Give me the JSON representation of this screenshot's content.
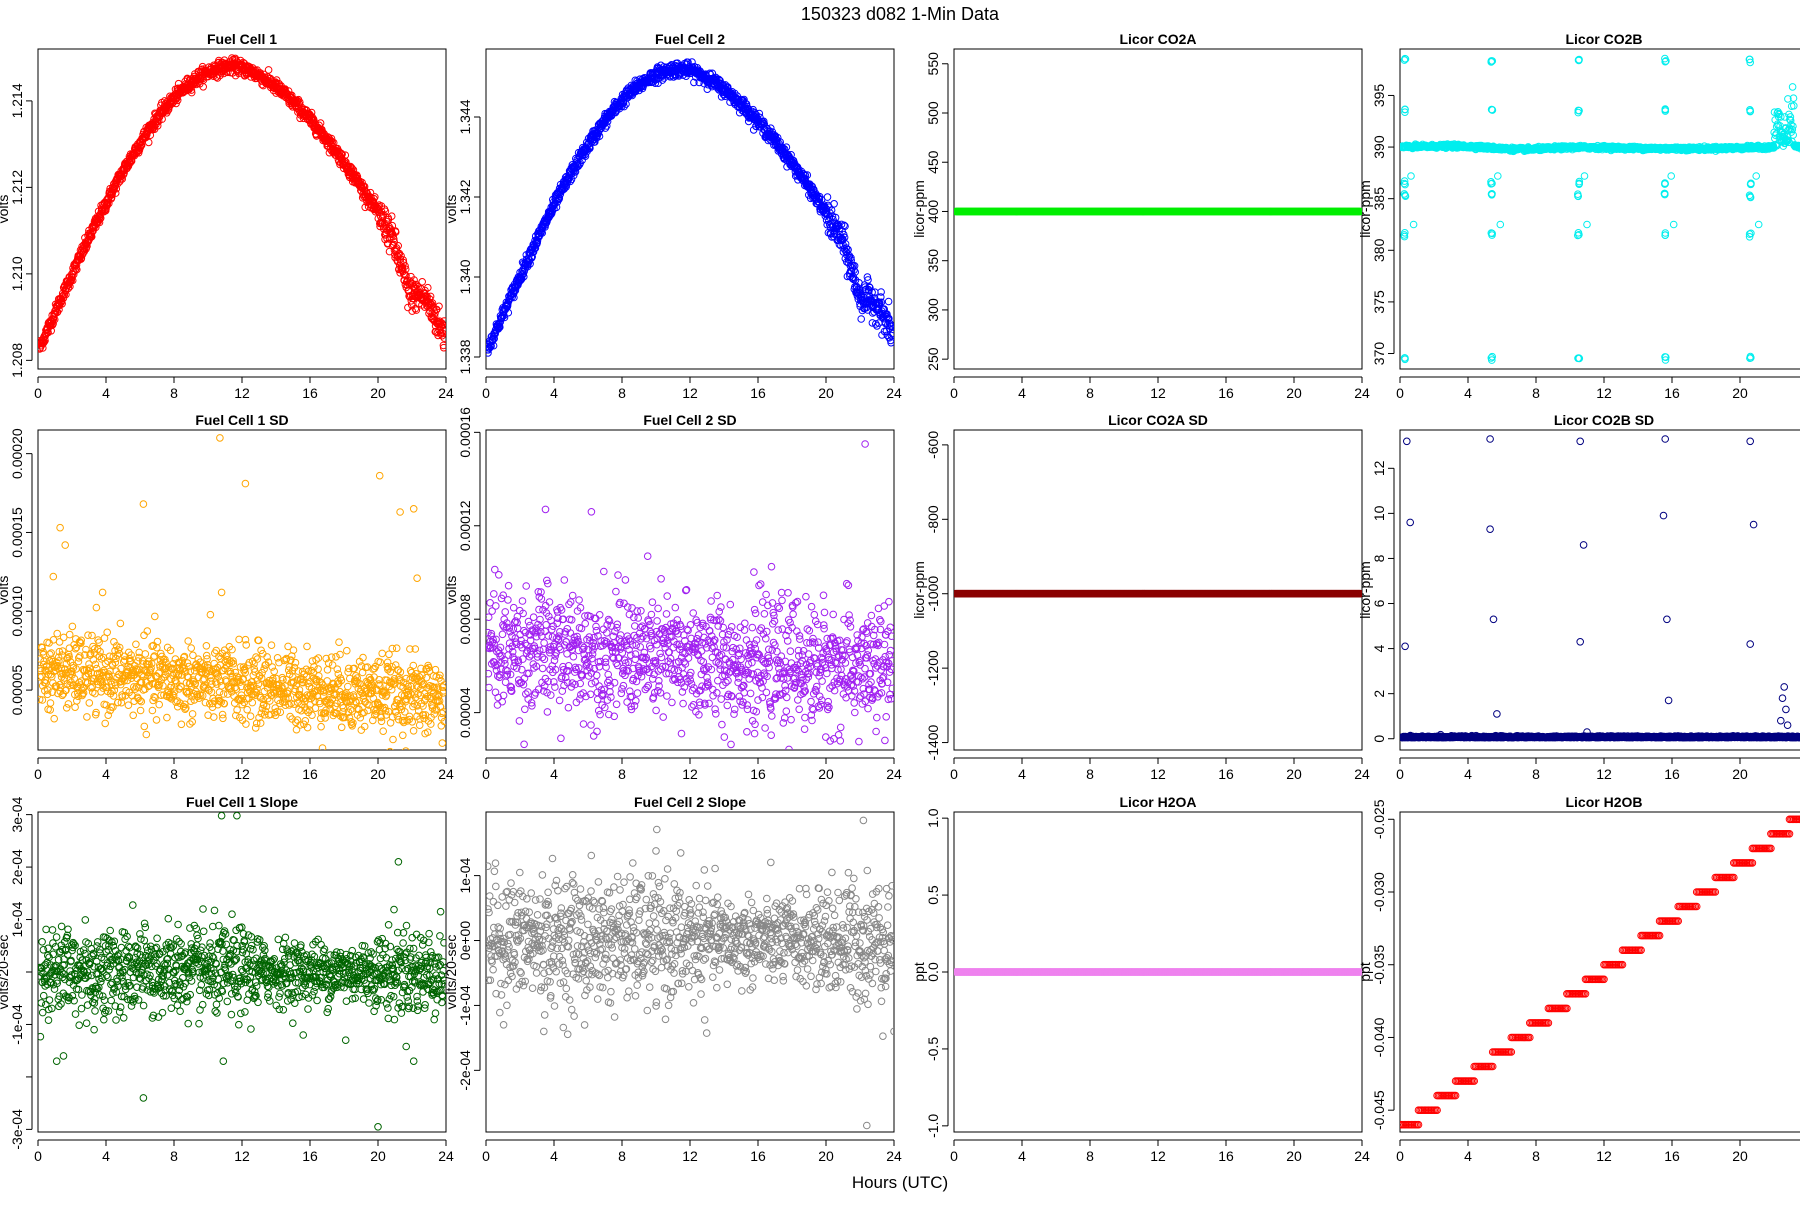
{
  "page": {
    "title": "150323    d082    1-Min Data",
    "xlabel": "Hours (UTC)"
  },
  "chart_data": [
    {
      "type": "scatter",
      "title": "Fuel Cell 1",
      "ylabel": "volts",
      "color": "#ff0000",
      "xlim": [
        0,
        24
      ],
      "ylim": [
        1.2078,
        1.2152
      ],
      "xticks": [
        0,
        4,
        8,
        12,
        16,
        20,
        24
      ],
      "yticks": [
        1.208,
        1.21,
        1.212,
        1.214
      ],
      "ytick_labels": [
        "1.208",
        "1.210",
        "1.212",
        "1.214"
      ],
      "pattern": "arch",
      "y_start": 1.2082,
      "y_peak": 1.2148,
      "x_peak": 11.5,
      "y_end": 1.2085,
      "noise": 0.00015,
      "dip": {
        "x": 21.8,
        "depth": 0.0012
      }
    },
    {
      "type": "scatter",
      "title": "Fuel Cell 2",
      "ylabel": "volts",
      "color": "#0000ff",
      "xlim": [
        0,
        24
      ],
      "ylim": [
        1.3377,
        1.3457
      ],
      "xticks": [
        0,
        4,
        8,
        12,
        16,
        20,
        24
      ],
      "yticks": [
        1.338,
        1.34,
        1.342,
        1.344
      ],
      "ytick_labels": [
        "1.338",
        "1.340",
        "1.342",
        "1.344"
      ],
      "pattern": "arch",
      "y_start": 1.3381,
      "y_peak": 1.3452,
      "x_peak": 11.5,
      "y_end": 1.3385,
      "noise": 0.00016,
      "dip": {
        "x": 22.0,
        "depth": 0.0013
      }
    },
    {
      "type": "scatter",
      "title": "Licor CO2A",
      "ylabel": "licor-ppm",
      "color": "#00ee00",
      "xlim": [
        0,
        24
      ],
      "ylim": [
        240,
        565
      ],
      "xticks": [
        0,
        4,
        8,
        12,
        16,
        20,
        24
      ],
      "yticks": [
        250,
        300,
        350,
        400,
        450,
        500,
        550
      ],
      "ytick_labels": [
        "250",
        "300",
        "350",
        "400",
        "450",
        "500",
        "550"
      ],
      "pattern": "flat",
      "value": 400
    },
    {
      "type": "scatter",
      "title": "Licor CO2B",
      "ylabel": "licor-ppm",
      "color": "#00eeee",
      "xlim": [
        0,
        24
      ],
      "ylim": [
        368.5,
        399.5
      ],
      "xticks": [
        0,
        4,
        8,
        12,
        16,
        20,
        24
      ],
      "yticks": [
        370,
        375,
        380,
        385,
        390,
        395
      ],
      "ytick_labels": [
        "370",
        "375",
        "380",
        "385",
        "390",
        "395"
      ],
      "pattern": "co2b",
      "value": 390,
      "calibrations": [
        0.3,
        5.4,
        10.5,
        15.6,
        20.6
      ],
      "cal_values": [
        398.4,
        393.5,
        386.5,
        385.3,
        381.5,
        369.5
      ]
    },
    {
      "type": "scatter",
      "title": "Fuel Cell 1 SD",
      "ylabel": "volts",
      "color": "#ffa500",
      "xlim": [
        0,
        24
      ],
      "ylim": [
        1.2e-05,
        0.000215
      ],
      "xticks": [
        0,
        4,
        8,
        12,
        16,
        20,
        24
      ],
      "yticks": [
        5e-05,
        0.0001,
        0.00015,
        0.0002
      ],
      "ytick_labels": [
        "0.00005",
        "0.00010",
        "0.00015",
        "0.00020"
      ],
      "pattern": "noise",
      "mean_start": 6.2e-05,
      "mean_end": 4.5e-05,
      "spread": 1.2e-05,
      "outliers": [
        [
          0.9,
          0.000122
        ],
        [
          1.3,
          0.000153
        ],
        [
          1.6,
          0.000142
        ],
        [
          3.8,
          0.000112
        ],
        [
          6.2,
          0.000168
        ],
        [
          10.7,
          0.00021
        ],
        [
          10.8,
          0.000112
        ],
        [
          12.2,
          0.000181
        ],
        [
          20.1,
          0.000186
        ],
        [
          21.3,
          0.000163
        ],
        [
          22.1,
          0.000165
        ],
        [
          22.3,
          0.000121
        ]
      ]
    },
    {
      "type": "scatter",
      "title": "Fuel Cell 2 SD",
      "ylabel": "volts",
      "color": "#a020f0",
      "xlim": [
        0,
        24
      ],
      "ylim": [
        2.4e-05,
        0.000161
      ],
      "xticks": [
        0,
        4,
        8,
        12,
        16,
        20,
        24
      ],
      "yticks": [
        4e-05,
        8e-05,
        0.00012,
        0.00016
      ],
      "ytick_labels": [
        "0.00004",
        "0.00008",
        "0.00012",
        "0.00016"
      ],
      "pattern": "noise",
      "mean_start": 6.8e-05,
      "mean_end": 5.8e-05,
      "spread": 1.3e-05,
      "outliers": [
        [
          3.5,
          0.000127
        ],
        [
          6.2,
          0.000126
        ],
        [
          22.3,
          0.000155
        ],
        [
          11.5,
          3.1e-05
        ],
        [
          15.8,
          3.1e-05
        ]
      ]
    },
    {
      "type": "scatter",
      "title": "Licor CO2A SD",
      "ylabel": "licor-ppm",
      "color": "#8b0000",
      "xlim": [
        0,
        24
      ],
      "ylim": [
        -1420,
        -560
      ],
      "xticks": [
        0,
        4,
        8,
        12,
        16,
        20,
        24
      ],
      "yticks": [
        -1400,
        -1200,
        -1000,
        -800,
        -600
      ],
      "ytick_labels": [
        "-1400",
        "-1200",
        "-1000",
        "-800",
        "-600"
      ],
      "pattern": "flat",
      "value": -1000
    },
    {
      "type": "scatter",
      "title": "Licor CO2B SD",
      "ylabel": "licor-ppm",
      "color": "#000080",
      "xlim": [
        0,
        24
      ],
      "ylim": [
        -0.5,
        13.7
      ],
      "xticks": [
        0,
        4,
        8,
        12,
        16,
        20,
        24
      ],
      "yticks": [
        0,
        2,
        4,
        6,
        8,
        10,
        12
      ],
      "ytick_labels": [
        "0",
        "2",
        "4",
        "6",
        "8",
        "10",
        "12"
      ],
      "pattern": "co2bsd",
      "value": 0.05,
      "outliers": [
        [
          0.4,
          13.2
        ],
        [
          0.6,
          9.6
        ],
        [
          0.3,
          4.1
        ],
        [
          5.3,
          13.3
        ],
        [
          5.3,
          9.3
        ],
        [
          5.5,
          5.3
        ],
        [
          5.7,
          1.1
        ],
        [
          10.6,
          13.2
        ],
        [
          10.6,
          4.3
        ],
        [
          10.8,
          8.6
        ],
        [
          11.0,
          0.3
        ],
        [
          15.6,
          13.3
        ],
        [
          15.5,
          9.9
        ],
        [
          15.7,
          5.3
        ],
        [
          15.8,
          1.7
        ],
        [
          20.6,
          13.2
        ],
        [
          20.6,
          4.2
        ],
        [
          20.8,
          9.5
        ],
        [
          22.6,
          2.3
        ],
        [
          22.5,
          1.8
        ],
        [
          22.7,
          1.3
        ],
        [
          22.4,
          0.8
        ],
        [
          22.8,
          0.6
        ]
      ]
    },
    {
      "type": "scatter",
      "title": "Fuel Cell 1 Slope",
      "ylabel": "volts/20-sec",
      "color": "#006400",
      "xlim": [
        0,
        24
      ],
      "ylim": [
        -0.000305,
        0.000305
      ],
      "xticks": [
        0,
        4,
        8,
        12,
        16,
        20,
        24
      ],
      "yticks": [
        -0.0003,
        -0.0002,
        -0.0001,
        0.0,
        0.0001,
        0.0002,
        0.0003
      ],
      "ytick_labels": [
        "-3e-04",
        "",
        "-1e-04",
        "",
        "1e-04",
        "2e-04",
        "3e-04"
      ],
      "pattern": "noise",
      "mean_start": 0.0,
      "mean_end": 0.0,
      "spread": 4.2e-05,
      "outliers": [
        [
          1.1,
          -0.00017
        ],
        [
          1.5,
          -0.00016
        ],
        [
          6.2,
          -0.00024
        ],
        [
          10.8,
          0.000298
        ],
        [
          11.7,
          0.000298
        ],
        [
          10.9,
          -0.00017
        ],
        [
          20.0,
          -0.000295
        ],
        [
          21.2,
          0.00021
        ],
        [
          22.1,
          -0.00017
        ],
        [
          3.3,
          -0.00011
        ],
        [
          15.6,
          -0.00012
        ],
        [
          18.1,
          -0.00013
        ]
      ]
    },
    {
      "type": "scatter",
      "title": "Fuel Cell 2 Slope",
      "ylabel": "volts/20-sec",
      "color": "#888888",
      "xlim": [
        0,
        24
      ],
      "ylim": [
        -0.000295,
        0.000198
      ],
      "xticks": [
        0,
        4,
        8,
        12,
        16,
        20,
        24
      ],
      "yticks": [
        -0.0002,
        -0.0001,
        0.0,
        0.0001
      ],
      "ytick_labels": [
        "-2e-04",
        "-1e-04",
        "0e+00",
        "1e-04"
      ],
      "pattern": "noise",
      "mean_start": 0.0,
      "mean_end": 0.0,
      "spread": 4.8e-05,
      "outliers": [
        [
          22.2,
          0.000185
        ],
        [
          22.4,
          -0.000285
        ],
        [
          3.4,
          -0.00014
        ],
        [
          24.0,
          -0.00014
        ],
        [
          10.0,
          0.000138
        ],
        [
          5.8,
          -0.00013
        ]
      ]
    },
    {
      "type": "scatter",
      "title": "Licor H2OA",
      "ylabel": "ppt",
      "color": "#ee82ee",
      "xlim": [
        0,
        24
      ],
      "ylim": [
        -1.04,
        1.04
      ],
      "xticks": [
        0,
        4,
        8,
        12,
        16,
        20,
        24
      ],
      "yticks": [
        -1.0,
        -0.5,
        0.0,
        0.5,
        1.0
      ],
      "ytick_labels": [
        "-1.0",
        "-0.5",
        "0.0",
        "0.5",
        "1.0"
      ],
      "pattern": "flat",
      "value": 0.0
    },
    {
      "type": "scatter",
      "title": "Licor H2OB",
      "ylabel": "ppt",
      "color": "#ff0000",
      "xlim": [
        0,
        24
      ],
      "ylim": [
        -0.0465,
        -0.0245
      ],
      "xticks": [
        0,
        4,
        8,
        12,
        16,
        20,
        24
      ],
      "yticks": [
        -0.045,
        -0.04,
        -0.035,
        -0.03,
        -0.025
      ],
      "ytick_labels": [
        "-0.045",
        "-0.040",
        "-0.035",
        "-0.030",
        "-0.025"
      ],
      "pattern": "steps",
      "y_start": -0.046,
      "y_end": -0.025,
      "step": 0.001
    }
  ]
}
